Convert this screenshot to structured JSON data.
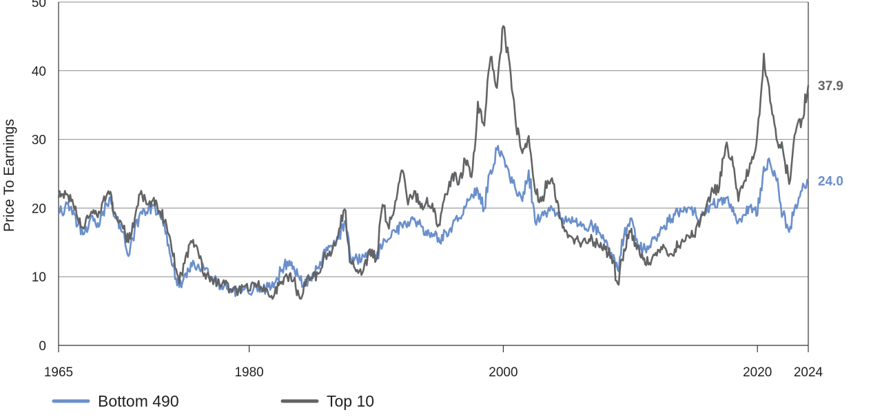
{
  "chart_data": {
    "type": "line",
    "ylabel": "Price To Earnings",
    "xlabel": "",
    "xlim": [
      1965,
      2024
    ],
    "ylim": [
      0,
      50
    ],
    "y_ticks": [
      0,
      10,
      20,
      30,
      40,
      50
    ],
    "x_ticks": [
      1965,
      1980,
      2000,
      2020,
      2024
    ],
    "grid": "horizontal",
    "legend_position": "bottom-left",
    "series": [
      {
        "name": "Bottom 490",
        "color": "#6a8fcb",
        "end_label": "24.0",
        "points": [
          [
            1965,
            19.2
          ],
          [
            1965.5,
            20.0
          ],
          [
            1966,
            20.2
          ],
          [
            1966.5,
            17.5
          ],
          [
            1967,
            16.2
          ],
          [
            1967.5,
            18.5
          ],
          [
            1968,
            17.2
          ],
          [
            1968.5,
            19.5
          ],
          [
            1969,
            21.5
          ],
          [
            1969.5,
            18.5
          ],
          [
            1970,
            16.5
          ],
          [
            1970.5,
            13.0
          ],
          [
            1971,
            17.0
          ],
          [
            1971.5,
            19.5
          ],
          [
            1972,
            19.2
          ],
          [
            1972.5,
            20.5
          ],
          [
            1973,
            18.8
          ],
          [
            1973.5,
            16.5
          ],
          [
            1974,
            11.5
          ],
          [
            1974.5,
            8.5
          ],
          [
            1975,
            10.5
          ],
          [
            1975.5,
            11.5
          ],
          [
            1976,
            11.8
          ],
          [
            1976.5,
            11.0
          ],
          [
            1977,
            9.5
          ],
          [
            1977.5,
            9.2
          ],
          [
            1978,
            8.5
          ],
          [
            1978.5,
            8.0
          ],
          [
            1979,
            7.8
          ],
          [
            1979.5,
            8.2
          ],
          [
            1980,
            7.5
          ],
          [
            1980.5,
            8.5
          ],
          [
            1981,
            7.8
          ],
          [
            1981.5,
            8.5
          ],
          [
            1982,
            9.0
          ],
          [
            1982.5,
            10.8
          ],
          [
            1983,
            12.2
          ],
          [
            1983.5,
            11.5
          ],
          [
            1984,
            9.5
          ],
          [
            1984.5,
            9.0
          ],
          [
            1985,
            10.5
          ],
          [
            1985.5,
            11.2
          ],
          [
            1986,
            13.5
          ],
          [
            1986.5,
            14.5
          ],
          [
            1987,
            15.5
          ],
          [
            1987.5,
            18.0
          ],
          [
            1988,
            12.5
          ],
          [
            1988.5,
            12.5
          ],
          [
            1989,
            13.0
          ],
          [
            1989.5,
            13.5
          ],
          [
            1990,
            12.5
          ],
          [
            1990.5,
            14.5
          ],
          [
            1991,
            15.5
          ],
          [
            1991.5,
            16.5
          ],
          [
            1992,
            17.5
          ],
          [
            1992.5,
            18.0
          ],
          [
            1993,
            18.5
          ],
          [
            1993.5,
            17.5
          ],
          [
            1994,
            16.0
          ],
          [
            1994.5,
            16.2
          ],
          [
            1995,
            15.0
          ],
          [
            1995.5,
            16.5
          ],
          [
            1996,
            17.5
          ],
          [
            1996.5,
            18.5
          ],
          [
            1997,
            20.0
          ],
          [
            1997.5,
            22.0
          ],
          [
            1998,
            22.5
          ],
          [
            1998.5,
            20.0
          ],
          [
            1999,
            25.5
          ],
          [
            1999.5,
            28.5
          ],
          [
            2000,
            27.5
          ],
          [
            2000.5,
            24.5
          ],
          [
            2001,
            22.5
          ],
          [
            2001.5,
            21.0
          ],
          [
            2002,
            25.5
          ],
          [
            2002.5,
            18.0
          ],
          [
            2003,
            19.0
          ],
          [
            2003.5,
            19.5
          ],
          [
            2004,
            19.8
          ],
          [
            2004.5,
            18.5
          ],
          [
            2005,
            18.0
          ],
          [
            2005.5,
            18.0
          ],
          [
            2006,
            17.5
          ],
          [
            2006.5,
            17.0
          ],
          [
            2007,
            17.5
          ],
          [
            2007.5,
            16.5
          ],
          [
            2008,
            15.0
          ],
          [
            2008.5,
            13.5
          ],
          [
            2009,
            11.0
          ],
          [
            2009.5,
            16.0
          ],
          [
            2010,
            18.5
          ],
          [
            2010.5,
            15.5
          ],
          [
            2011,
            14.0
          ],
          [
            2011.5,
            14.5
          ],
          [
            2012,
            15.5
          ],
          [
            2012.5,
            17.0
          ],
          [
            2013,
            18.0
          ],
          [
            2013.5,
            19.0
          ],
          [
            2014,
            19.5
          ],
          [
            2014.5,
            20.0
          ],
          [
            2015,
            19.5
          ],
          [
            2015.5,
            18.5
          ],
          [
            2016,
            19.5
          ],
          [
            2016.5,
            20.5
          ],
          [
            2017,
            21.0
          ],
          [
            2017.5,
            21.5
          ],
          [
            2018,
            19.5
          ],
          [
            2018.5,
            18.0
          ],
          [
            2019,
            19.0
          ],
          [
            2019.5,
            20.5
          ],
          [
            2020,
            19.0
          ],
          [
            2020.5,
            26.0
          ],
          [
            2021,
            26.5
          ],
          [
            2021.5,
            24.0
          ],
          [
            2022,
            19.0
          ],
          [
            2022.5,
            16.5
          ],
          [
            2023,
            20.5
          ],
          [
            2023.5,
            22.5
          ],
          [
            2024,
            24.0
          ]
        ]
      },
      {
        "name": "Top 10",
        "color": "#626365",
        "end_label": "37.9",
        "points": [
          [
            1965,
            21.5
          ],
          [
            1965.5,
            22.5
          ],
          [
            1966,
            21.0
          ],
          [
            1966.5,
            18.5
          ],
          [
            1967,
            17.0
          ],
          [
            1967.5,
            19.0
          ],
          [
            1968,
            19.0
          ],
          [
            1968.5,
            21.0
          ],
          [
            1969,
            22.0
          ],
          [
            1969.5,
            19.0
          ],
          [
            1970,
            17.5
          ],
          [
            1970.5,
            15.0
          ],
          [
            1971,
            18.5
          ],
          [
            1971.5,
            22.5
          ],
          [
            1972,
            20.5
          ],
          [
            1972.5,
            21.5
          ],
          [
            1973,
            19.5
          ],
          [
            1973.5,
            17.5
          ],
          [
            1974,
            13.0
          ],
          [
            1974.5,
            9.0
          ],
          [
            1975,
            13.0
          ],
          [
            1975.5,
            15.0
          ],
          [
            1976,
            13.5
          ],
          [
            1976.5,
            10.5
          ],
          [
            1977,
            10.0
          ],
          [
            1977.5,
            9.0
          ],
          [
            1978,
            9.5
          ],
          [
            1978.5,
            8.2
          ],
          [
            1979,
            8.0
          ],
          [
            1979.5,
            8.5
          ],
          [
            1980,
            8.0
          ],
          [
            1980.5,
            9.0
          ],
          [
            1981,
            8.2
          ],
          [
            1981.5,
            7.5
          ],
          [
            1982,
            7.5
          ],
          [
            1982.5,
            9.0
          ],
          [
            1983,
            10.0
          ],
          [
            1983.5,
            9.5
          ],
          [
            1984,
            6.8
          ],
          [
            1984.5,
            9.5
          ],
          [
            1985,
            9.8
          ],
          [
            1985.5,
            10.5
          ],
          [
            1986,
            13.0
          ],
          [
            1986.5,
            13.5
          ],
          [
            1987,
            16.0
          ],
          [
            1987.5,
            19.8
          ],
          [
            1988,
            12.0
          ],
          [
            1988.5,
            11.0
          ],
          [
            1989,
            11.0
          ],
          [
            1989.5,
            14.0
          ],
          [
            1990,
            12.5
          ],
          [
            1990.5,
            20.5
          ],
          [
            1991,
            17.0
          ],
          [
            1991.5,
            21.0
          ],
          [
            1992,
            25.5
          ],
          [
            1992.5,
            20.5
          ],
          [
            1993,
            22.5
          ],
          [
            1993.5,
            20.0
          ],
          [
            1994,
            21.5
          ],
          [
            1994.5,
            19.5
          ],
          [
            1995,
            17.5
          ],
          [
            1995.5,
            22.0
          ],
          [
            1996,
            25.0
          ],
          [
            1996.5,
            23.5
          ],
          [
            1997,
            27.0
          ],
          [
            1997.5,
            24.5
          ],
          [
            1998,
            35.5
          ],
          [
            1998.5,
            32.0
          ],
          [
            1999,
            42.0
          ],
          [
            1999.5,
            37.5
          ],
          [
            2000,
            46.5
          ],
          [
            2000.5,
            41.0
          ],
          [
            2001,
            32.0
          ],
          [
            2001.5,
            28.0
          ],
          [
            2002,
            30.5
          ],
          [
            2002.5,
            22.5
          ],
          [
            2003,
            21.0
          ],
          [
            2003.5,
            24.0
          ],
          [
            2004,
            23.5
          ],
          [
            2004.5,
            18.5
          ],
          [
            2005,
            16.5
          ],
          [
            2005.5,
            15.5
          ],
          [
            2006,
            15.0
          ],
          [
            2006.5,
            15.0
          ],
          [
            2007,
            15.5
          ],
          [
            2007.5,
            14.5
          ],
          [
            2008,
            14.0
          ],
          [
            2008.5,
            13.0
          ],
          [
            2009,
            9.0
          ],
          [
            2009.5,
            14.0
          ],
          [
            2010,
            16.5
          ],
          [
            2010.5,
            14.0
          ],
          [
            2011,
            12.5
          ],
          [
            2011.5,
            12.0
          ],
          [
            2012,
            13.5
          ],
          [
            2012.5,
            14.0
          ],
          [
            2013,
            13.0
          ],
          [
            2013.5,
            14.0
          ],
          [
            2014,
            15.0
          ],
          [
            2014.5,
            16.0
          ],
          [
            2015,
            16.0
          ],
          [
            2015.5,
            18.0
          ],
          [
            2016,
            20.5
          ],
          [
            2016.5,
            22.5
          ],
          [
            2017,
            23.0
          ],
          [
            2017.5,
            29.0
          ],
          [
            2018,
            27.5
          ],
          [
            2018.5,
            21.0
          ],
          [
            2019,
            24.0
          ],
          [
            2019.5,
            26.5
          ],
          [
            2020,
            31.0
          ],
          [
            2020.5,
            42.5
          ],
          [
            2021,
            35.5
          ],
          [
            2021.5,
            30.0
          ],
          [
            2022,
            28.5
          ],
          [
            2022.5,
            23.5
          ],
          [
            2023,
            31.0
          ],
          [
            2023.5,
            33.0
          ],
          [
            2024,
            37.9
          ]
        ]
      }
    ]
  }
}
